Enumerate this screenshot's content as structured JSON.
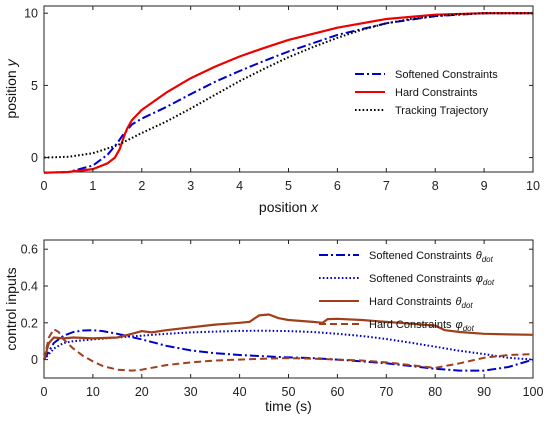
{
  "chart_data": [
    {
      "type": "line",
      "xlabel": "position",
      "xlabel_var": "x",
      "ylabel": "position",
      "ylabel_var": "y",
      "xlim": [
        0,
        10
      ],
      "ylim": [
        -1,
        10.5
      ],
      "xticks": [
        "0",
        "1",
        "2",
        "3",
        "4",
        "5",
        "6",
        "7",
        "8",
        "9",
        "10"
      ],
      "yticks": [
        "0",
        "5",
        "10"
      ],
      "legend_position": "right",
      "series": [
        {
          "name": "Softened Constraints",
          "color": "#0000cc",
          "style": "dash-dot",
          "x": [
            0,
            0.5,
            1.0,
            1.3,
            1.5,
            1.6,
            1.7,
            1.8,
            2.0,
            2.5,
            3.0,
            3.5,
            4.0,
            4.5,
            5.0,
            6.0,
            7.0,
            8.0,
            9.0,
            10.0
          ],
          "y": [
            -1.05,
            -1.0,
            -0.55,
            0.2,
            1.0,
            1.5,
            1.9,
            2.3,
            2.7,
            3.5,
            4.4,
            5.25,
            6.0,
            6.7,
            7.35,
            8.5,
            9.3,
            9.8,
            10.0,
            10.0
          ]
        },
        {
          "name": "Hard Constraints",
          "color": "#ee0000",
          "style": "solid",
          "x": [
            0,
            0.5,
            1.0,
            1.3,
            1.45,
            1.55,
            1.6,
            1.65,
            1.7,
            1.8,
            2.0,
            2.5,
            3.0,
            3.5,
            4.0,
            4.5,
            5.0,
            6.0,
            7.0,
            8.0,
            9.0,
            10.0
          ],
          "y": [
            -1.05,
            -1.0,
            -0.8,
            -0.4,
            0.0,
            0.6,
            1.1,
            1.6,
            2.0,
            2.6,
            3.3,
            4.5,
            5.5,
            6.3,
            7.0,
            7.6,
            8.15,
            9.0,
            9.6,
            9.9,
            10.0,
            10.0
          ]
        },
        {
          "name": "Tracking Trajectory",
          "color": "#000000",
          "style": "dotted",
          "x": [
            0,
            0.5,
            1.0,
            1.5,
            2.0,
            2.5,
            3.0,
            3.5,
            4.0,
            4.5,
            5.0,
            5.5,
            6.0,
            6.5,
            7.0,
            7.5,
            8.0,
            8.5,
            9.0,
            9.5,
            10.0
          ],
          "y": [
            0,
            0.05,
            0.3,
            0.85,
            1.7,
            2.5,
            3.4,
            4.35,
            5.3,
            6.15,
            6.95,
            7.65,
            8.3,
            8.85,
            9.3,
            9.6,
            9.8,
            9.93,
            10.0,
            10.0,
            10.0
          ]
        }
      ]
    },
    {
      "type": "line",
      "xlabel": "time (s)",
      "ylabel": "control inputs",
      "xlim": [
        0,
        100
      ],
      "ylim": [
        -0.1,
        0.65
      ],
      "xticks": [
        "0",
        "10",
        "20",
        "30",
        "40",
        "50",
        "60",
        "70",
        "80",
        "90",
        "100"
      ],
      "yticks": [
        "0",
        "0.2",
        "0.4",
        "0.6"
      ],
      "legend_position": "top-right",
      "series": [
        {
          "name": "Softened Constraints",
          "name_symbol": "θ",
          "name_sub": "dot",
          "color": "#0000cc",
          "style": "dash-dot",
          "x": [
            0,
            2,
            4,
            6,
            8,
            10,
            12,
            15,
            20,
            25,
            30,
            35,
            40,
            45,
            50,
            55,
            60,
            65,
            70,
            75,
            80,
            85,
            90,
            95,
            100
          ],
          "y": [
            0,
            0.09,
            0.13,
            0.15,
            0.158,
            0.16,
            0.155,
            0.14,
            0.11,
            0.075,
            0.05,
            0.035,
            0.025,
            0.018,
            0.012,
            0.008,
            0.0,
            -0.01,
            -0.02,
            -0.035,
            -0.05,
            -0.06,
            -0.06,
            -0.04,
            0.0
          ]
        },
        {
          "name": "Softened Constraints",
          "name_symbol": "φ",
          "name_sub": "dot",
          "color": "#0000cc",
          "style": "dotted",
          "x": [
            0,
            2,
            4,
            6,
            10,
            15,
            20,
            25,
            30,
            35,
            40,
            45,
            50,
            55,
            60,
            65,
            70,
            75,
            80,
            85,
            90,
            95,
            100
          ],
          "y": [
            0,
            0.06,
            0.09,
            0.1,
            0.11,
            0.12,
            0.13,
            0.14,
            0.148,
            0.152,
            0.156,
            0.157,
            0.155,
            0.15,
            0.14,
            0.128,
            0.112,
            0.092,
            0.07,
            0.048,
            0.03,
            0.01,
            0.0
          ]
        },
        {
          "name": "Hard Constraints",
          "name_symbol": "θ",
          "name_sub": "dot",
          "color": "#a0401a",
          "style": "solid",
          "x": [
            0,
            1,
            2,
            4,
            6,
            10,
            15,
            18,
            20,
            22,
            25,
            30,
            35,
            40,
            42,
            44,
            46,
            48,
            50,
            55,
            57,
            58,
            60,
            65,
            70,
            75,
            80,
            82,
            85,
            90,
            95,
            100
          ],
          "y": [
            0,
            0.09,
            0.12,
            0.115,
            0.12,
            0.115,
            0.12,
            0.14,
            0.155,
            0.148,
            0.16,
            0.175,
            0.19,
            0.2,
            0.205,
            0.24,
            0.245,
            0.225,
            0.215,
            0.205,
            0.2,
            0.22,
            0.222,
            0.215,
            0.205,
            0.195,
            0.185,
            0.16,
            0.15,
            0.14,
            0.137,
            0.135
          ]
        },
        {
          "name": "Hard Constraints",
          "name_symbol": "φ",
          "name_sub": "dot",
          "color": "#a0401a",
          "style": "dashed",
          "x": [
            0,
            1,
            2,
            3,
            4,
            6,
            8,
            10,
            12,
            15,
            18,
            20,
            25,
            30,
            35,
            40,
            45,
            50,
            55,
            60,
            65,
            70,
            75,
            80,
            85,
            90,
            95,
            100
          ],
          "y": [
            0,
            0.12,
            0.165,
            0.15,
            0.11,
            0.06,
            0.02,
            -0.01,
            -0.035,
            -0.055,
            -0.06,
            -0.055,
            -0.03,
            -0.015,
            -0.005,
            0.0,
            0.005,
            0.008,
            0.005,
            0.0,
            -0.005,
            -0.015,
            -0.03,
            -0.045,
            -0.02,
            0.01,
            0.025,
            0.03
          ]
        }
      ]
    }
  ]
}
